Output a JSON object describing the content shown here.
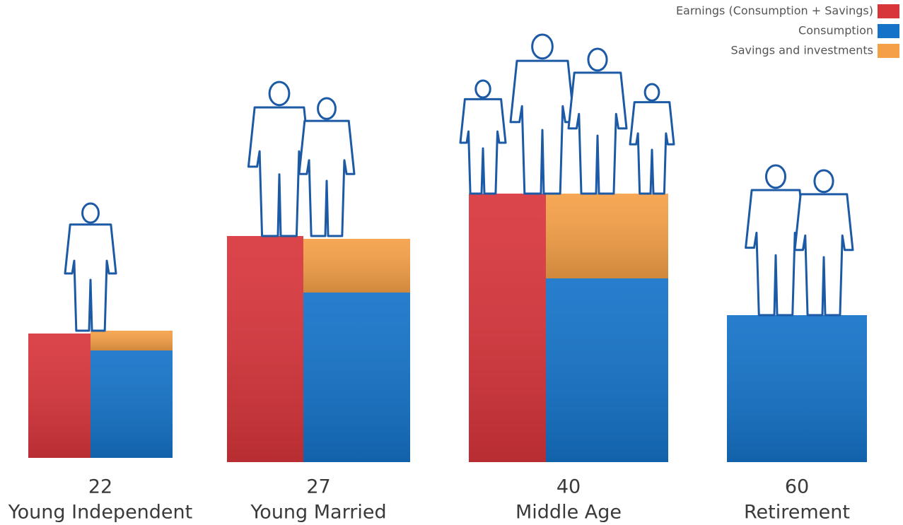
{
  "chart_data": {
    "type": "bar",
    "categories": [
      "22",
      "27",
      "40",
      "60"
    ],
    "stages": [
      "Young Independent",
      "Young Married",
      "Middle Age",
      "Retirement"
    ],
    "series": [
      {
        "name": "Earnings (Consumption + Savings)",
        "color": "#d8353b",
        "values": [
          44,
          80,
          95,
          null
        ]
      },
      {
        "name": "Consumption",
        "color": "#1473c8",
        "values": [
          38,
          60,
          65,
          52
        ]
      },
      {
        "name": "Savings and investments",
        "color": "#f5a047",
        "values": [
          7,
          19,
          30,
          null
        ]
      }
    ],
    "ylim": [
      0,
      100
    ]
  }
}
